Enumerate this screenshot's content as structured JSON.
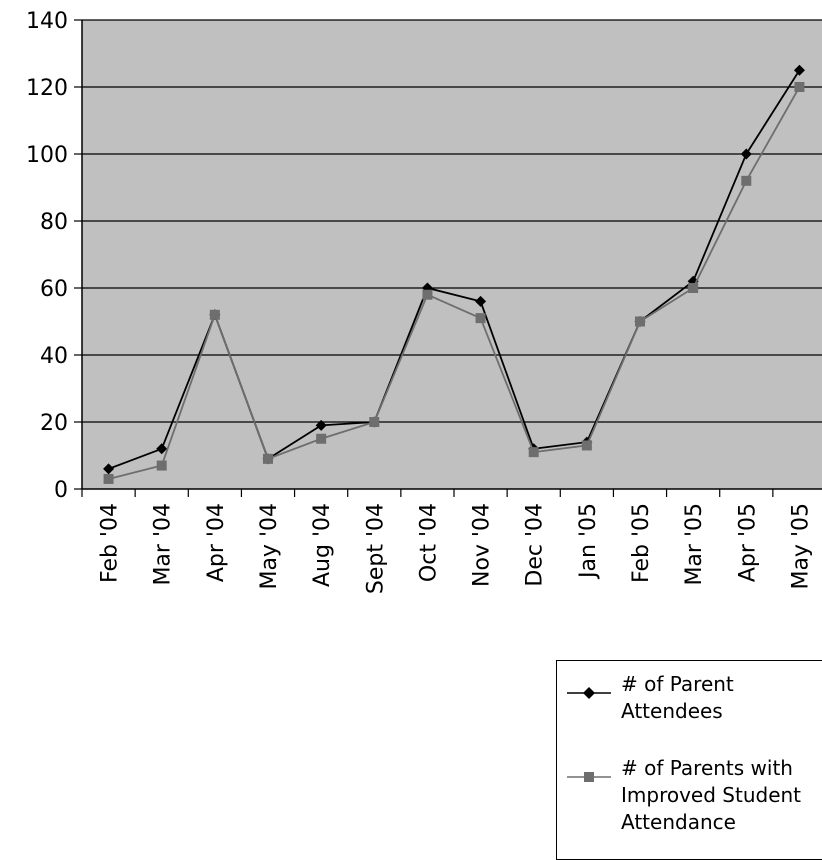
{
  "chart_data": {
    "type": "line",
    "categories": [
      "Feb '04",
      "Mar '04",
      "Apr '04",
      "May '04",
      "Aug '04",
      "Sept '04",
      "Oct '04",
      "Nov '04",
      "Dec '04",
      "Jan '05",
      "Feb '05",
      "Mar '05",
      "Apr '05",
      "May '05"
    ],
    "series": [
      {
        "name": "# of Parent Attendees",
        "color": "#000000",
        "marker": "diamond",
        "values": [
          6,
          12,
          52,
          9,
          19,
          20,
          60,
          56,
          12,
          14,
          50,
          62,
          100,
          125
        ]
      },
      {
        "name": "# of Parents with Improved Student Attendance",
        "color": "#6e6e6e",
        "marker": "square",
        "values": [
          3,
          7,
          52,
          9,
          15,
          20,
          58,
          51,
          11,
          13,
          50,
          60,
          92,
          120
        ]
      }
    ],
    "yticks": [
      "0",
      "20",
      "40",
      "60",
      "80",
      "100",
      "120",
      "140"
    ],
    "ylim": [
      0,
      140
    ],
    "grid": "horizontal",
    "plot_background": "#c0c0c0",
    "legend_position": "bottom-right"
  }
}
